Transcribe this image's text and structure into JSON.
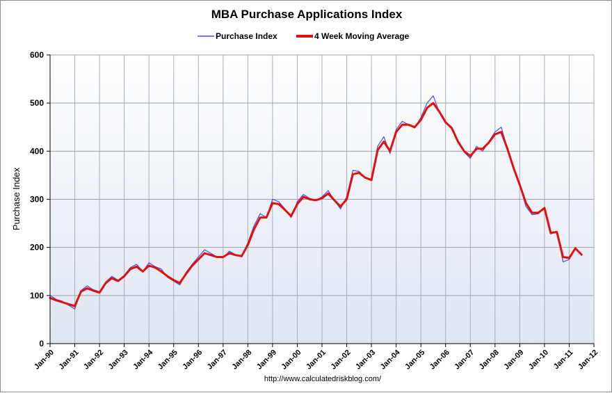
{
  "chart_data": {
    "type": "line",
    "title": "MBA Purchase Applications Index",
    "ylabel": "Purchase Index",
    "xlabel": "",
    "source": "http://www.calculatedriskblog.com/",
    "ylim": [
      0,
      600
    ],
    "yticks": [
      "0",
      "100",
      "200",
      "300",
      "400",
      "500",
      "600"
    ],
    "xlim": [
      "1990-01",
      "2012-01"
    ],
    "xticks": [
      "Jan-90",
      "Jan-91",
      "Jan-92",
      "Jan-93",
      "Jan-94",
      "Jan-95",
      "Jan-96",
      "Jan-97",
      "Jan-98",
      "Jan-99",
      "Jan-00",
      "Jan-01",
      "Jan-02",
      "Jan-03",
      "Jan-04",
      "Jan-05",
      "Jan-06",
      "Jan-07",
      "Jan-08",
      "Jan-09",
      "Jan-10",
      "Jan-11",
      "Jan-12"
    ],
    "grid": true,
    "legend_position": "top-center",
    "x": [
      "1990-01",
      "1990-04",
      "1990-07",
      "1990-10",
      "1991-01",
      "1991-04",
      "1991-07",
      "1991-10",
      "1992-01",
      "1992-04",
      "1992-07",
      "1992-10",
      "1993-01",
      "1993-04",
      "1993-07",
      "1993-10",
      "1994-01",
      "1994-04",
      "1994-07",
      "1994-10",
      "1995-01",
      "1995-04",
      "1995-07",
      "1995-10",
      "1996-01",
      "1996-04",
      "1996-07",
      "1996-10",
      "1997-01",
      "1997-04",
      "1997-07",
      "1997-10",
      "1998-01",
      "1998-04",
      "1998-07",
      "1998-10",
      "1999-01",
      "1999-04",
      "1999-07",
      "1999-10",
      "2000-01",
      "2000-04",
      "2000-07",
      "2000-10",
      "2001-01",
      "2001-04",
      "2001-07",
      "2001-10",
      "2002-01",
      "2002-04",
      "2002-07",
      "2002-10",
      "2003-01",
      "2003-04",
      "2003-07",
      "2003-10",
      "2004-01",
      "2004-04",
      "2004-07",
      "2004-10",
      "2005-01",
      "2005-04",
      "2005-07",
      "2005-10",
      "2006-01",
      "2006-04",
      "2006-07",
      "2006-10",
      "2007-01",
      "2007-04",
      "2007-07",
      "2007-10",
      "2008-01",
      "2008-04",
      "2008-07",
      "2008-10",
      "2009-01",
      "2009-04",
      "2009-07",
      "2009-10",
      "2010-01",
      "2010-04",
      "2010-07",
      "2010-10",
      "2011-01",
      "2011-04",
      "2011-07"
    ],
    "series": [
      {
        "name": "Purchase Index",
        "color": "#4a4ae8",
        "values": [
          100,
          92,
          88,
          80,
          72,
          110,
          120,
          112,
          108,
          128,
          140,
          132,
          142,
          158,
          165,
          150,
          168,
          160,
          155,
          138,
          130,
          122,
          148,
          165,
          180,
          195,
          188,
          180,
          178,
          192,
          185,
          180,
          210,
          245,
          270,
          262,
          300,
          295,
          280,
          262,
          295,
          310,
          302,
          298,
          305,
          318,
          298,
          280,
          305,
          360,
          358,
          345,
          340,
          410,
          430,
          395,
          445,
          462,
          455,
          448,
          470,
          500,
          515,
          480,
          458,
          450,
          420,
          398,
          385,
          410,
          400,
          420,
          440,
          450,
          405,
          362,
          328,
          285,
          268,
          270,
          282,
          228,
          232,
          170,
          175,
          200,
          183
        ]
      },
      {
        "name": "4 Week Moving Average",
        "color": "#e01010",
        "values": [
          95,
          90,
          86,
          82,
          78,
          108,
          115,
          110,
          106,
          126,
          136,
          130,
          140,
          155,
          160,
          150,
          162,
          158,
          150,
          140,
          132,
          126,
          145,
          162,
          175,
          188,
          184,
          180,
          180,
          188,
          184,
          182,
          205,
          238,
          262,
          262,
          292,
          290,
          278,
          265,
          290,
          305,
          300,
          298,
          302,
          312,
          298,
          285,
          300,
          352,
          355,
          345,
          340,
          402,
          420,
          400,
          440,
          455,
          455,
          450,
          465,
          490,
          500,
          482,
          460,
          448,
          420,
          400,
          390,
          405,
          405,
          418,
          435,
          440,
          405,
          365,
          330,
          292,
          272,
          272,
          282,
          230,
          232,
          180,
          178,
          198,
          185
        ]
      }
    ]
  }
}
